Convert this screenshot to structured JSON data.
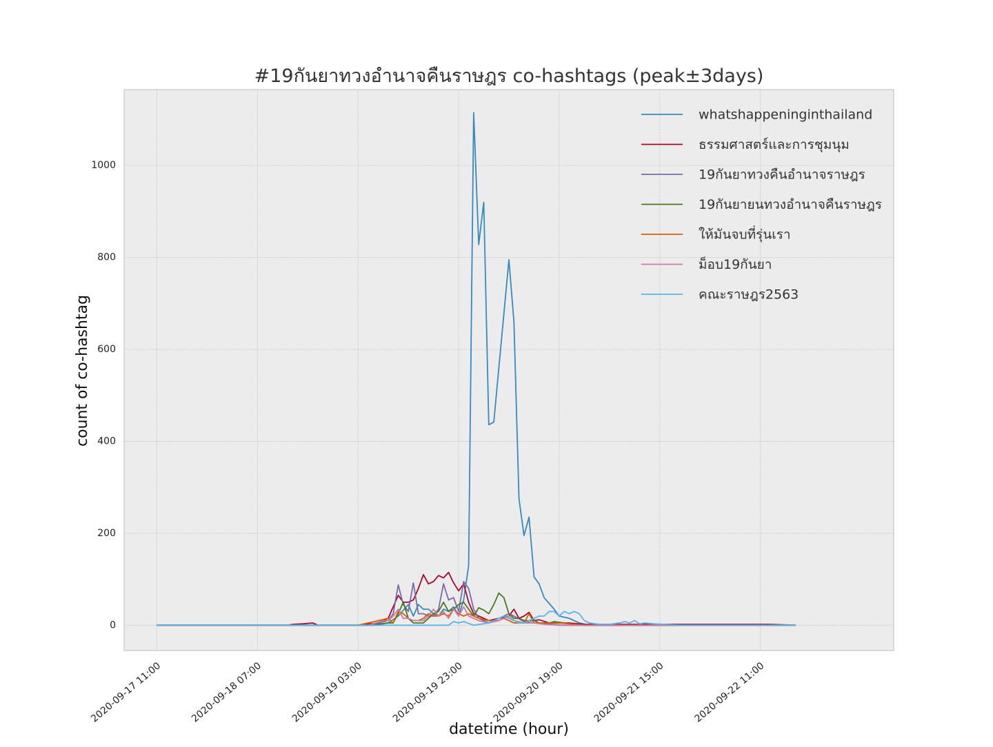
{
  "chart_data": {
    "type": "line",
    "title": "#19กันยาทวงอำนาจคืนราษฎร co-hashtags (peak±3days)",
    "xlabel": "datetime (hour)",
    "ylabel": "count of co-hashtag",
    "xlim": [
      "2020-09-17 04:30",
      "2020-09-23 13:30"
    ],
    "ylim": [
      -55,
      1165
    ],
    "xticks": [
      "2020-09-17 11:00",
      "2020-09-18 07:00",
      "2020-09-19 03:00",
      "2020-09-19 23:00",
      "2020-09-20 19:00",
      "2020-09-21 15:00",
      "2020-09-22 11:00"
    ],
    "yticks": [
      0,
      200,
      400,
      600,
      800,
      1000
    ],
    "grid": true,
    "legend_position": "upper right",
    "series": [
      {
        "name": "whatshappeninginthailand",
        "color": "#348abd",
        "points": [
          [
            "2020-09-17 11:00",
            0
          ],
          [
            "2020-09-19 06:00",
            0
          ],
          [
            "2020-09-19 09:00",
            5
          ],
          [
            "2020-09-19 11:00",
            20
          ],
          [
            "2020-09-19 13:00",
            45
          ],
          [
            "2020-09-19 14:00",
            20
          ],
          [
            "2020-09-19 15:00",
            45
          ],
          [
            "2020-09-19 16:00",
            35
          ],
          [
            "2020-09-19 17:00",
            35
          ],
          [
            "2020-09-19 18:00",
            25
          ],
          [
            "2020-09-19 19:00",
            20
          ],
          [
            "2020-09-19 20:00",
            35
          ],
          [
            "2020-09-19 21:00",
            30
          ],
          [
            "2020-09-19 22:00",
            40
          ],
          [
            "2020-09-19 23:00",
            20
          ],
          [
            "2020-09-20 00:00",
            55
          ],
          [
            "2020-09-20 01:00",
            130
          ],
          [
            "2020-09-20 02:00",
            1115
          ],
          [
            "2020-09-20 03:00",
            828
          ],
          [
            "2020-09-20 04:00",
            920
          ],
          [
            "2020-09-20 05:00",
            436
          ],
          [
            "2020-09-20 06:00",
            442
          ],
          [
            "2020-09-20 09:00",
            795
          ],
          [
            "2020-09-20 10:00",
            660
          ],
          [
            "2020-09-20 11:00",
            275
          ],
          [
            "2020-09-20 12:00",
            195
          ],
          [
            "2020-09-20 13:00",
            235
          ],
          [
            "2020-09-20 14:00",
            105
          ],
          [
            "2020-09-20 15:00",
            90
          ],
          [
            "2020-09-20 16:00",
            60
          ],
          [
            "2020-09-20 18:00",
            35
          ],
          [
            "2020-09-20 19:00",
            20
          ],
          [
            "2020-09-20 21:00",
            15
          ],
          [
            "2020-09-20 23:00",
            5
          ],
          [
            "2020-09-21 01:00",
            0
          ],
          [
            "2020-09-21 15:00",
            2
          ],
          [
            "2020-09-22 05:00",
            0
          ],
          [
            "2020-09-22 18:00",
            0
          ]
        ]
      },
      {
        "name": "ธรรมศาสตร์และการชุมนุม",
        "color": "#a60628",
        "points": [
          [
            "2020-09-17 11:00",
            0
          ],
          [
            "2020-09-18 13:00",
            0
          ],
          [
            "2020-09-18 14:00",
            2
          ],
          [
            "2020-09-18 16:00",
            3
          ],
          [
            "2020-09-18 18:00",
            5
          ],
          [
            "2020-09-18 19:00",
            0
          ],
          [
            "2020-09-19 03:00",
            0
          ],
          [
            "2020-09-19 07:00",
            5
          ],
          [
            "2020-09-19 09:00",
            15
          ],
          [
            "2020-09-19 10:00",
            40
          ],
          [
            "2020-09-19 11:00",
            65
          ],
          [
            "2020-09-19 12:00",
            50
          ],
          [
            "2020-09-19 13:00",
            50
          ],
          [
            "2020-09-19 14:00",
            55
          ],
          [
            "2020-09-19 15:00",
            80
          ],
          [
            "2020-09-19 16:00",
            110
          ],
          [
            "2020-09-19 17:00",
            90
          ],
          [
            "2020-09-19 18:00",
            95
          ],
          [
            "2020-09-19 19:00",
            108
          ],
          [
            "2020-09-19 20:00",
            103
          ],
          [
            "2020-09-19 21:00",
            115
          ],
          [
            "2020-09-19 22:00",
            92
          ],
          [
            "2020-09-19 23:00",
            75
          ],
          [
            "2020-09-20 00:00",
            90
          ],
          [
            "2020-09-20 01:00",
            50
          ],
          [
            "2020-09-20 02:00",
            25
          ],
          [
            "2020-09-20 03:00",
            20
          ],
          [
            "2020-09-20 05:00",
            10
          ],
          [
            "2020-09-20 07:00",
            15
          ],
          [
            "2020-09-20 09:00",
            20
          ],
          [
            "2020-09-20 10:00",
            35
          ],
          [
            "2020-09-20 11:00",
            15
          ],
          [
            "2020-09-20 12:00",
            20
          ],
          [
            "2020-09-20 13:00",
            28
          ],
          [
            "2020-09-20 14:00",
            10
          ],
          [
            "2020-09-20 15:00",
            12
          ],
          [
            "2020-09-20 17:00",
            5
          ],
          [
            "2020-09-20 21:00",
            5
          ],
          [
            "2020-09-21 00:00",
            2
          ],
          [
            "2020-09-21 10:00",
            2
          ],
          [
            "2020-09-22 13:00",
            2
          ],
          [
            "2020-09-22 18:00",
            0
          ]
        ]
      },
      {
        "name": "19กันยาทวงคืนอำนาจราษฎร",
        "color": "#7a68a6",
        "points": [
          [
            "2020-09-17 11:00",
            0
          ],
          [
            "2020-09-19 05:00",
            0
          ],
          [
            "2020-09-19 09:00",
            10
          ],
          [
            "2020-09-19 10:00",
            25
          ],
          [
            "2020-09-19 11:00",
            88
          ],
          [
            "2020-09-19 12:00",
            45
          ],
          [
            "2020-09-19 13:00",
            30
          ],
          [
            "2020-09-19 14:00",
            92
          ],
          [
            "2020-09-19 15:00",
            25
          ],
          [
            "2020-09-19 16:00",
            25
          ],
          [
            "2020-09-19 17:00",
            20
          ],
          [
            "2020-09-19 18:00",
            20
          ],
          [
            "2020-09-19 19:00",
            35
          ],
          [
            "2020-09-19 20:00",
            90
          ],
          [
            "2020-09-19 21:00",
            55
          ],
          [
            "2020-09-19 22:00",
            60
          ],
          [
            "2020-09-19 23:00",
            30
          ],
          [
            "2020-09-20 00:00",
            95
          ],
          [
            "2020-09-20 01:00",
            80
          ],
          [
            "2020-09-20 02:00",
            35
          ],
          [
            "2020-09-20 03:00",
            15
          ],
          [
            "2020-09-20 05:00",
            5
          ],
          [
            "2020-09-20 07:00",
            15
          ],
          [
            "2020-09-20 09:00",
            25
          ],
          [
            "2020-09-20 10:00",
            20
          ],
          [
            "2020-09-20 12:00",
            8
          ],
          [
            "2020-09-20 14:00",
            5
          ],
          [
            "2020-09-20 16:00",
            3
          ],
          [
            "2020-09-20 20:00",
            0
          ],
          [
            "2020-09-22 18:00",
            0
          ]
        ]
      },
      {
        "name": "19กันยายนทวงอำนาจคืนราษฎร",
        "color": "#467821",
        "points": [
          [
            "2020-09-17 11:00",
            0
          ],
          [
            "2020-09-19 05:00",
            0
          ],
          [
            "2020-09-19 09:00",
            5
          ],
          [
            "2020-09-19 10:00",
            5
          ],
          [
            "2020-09-19 11:00",
            25
          ],
          [
            "2020-09-19 12:00",
            50
          ],
          [
            "2020-09-19 13:00",
            15
          ],
          [
            "2020-09-19 14:00",
            5
          ],
          [
            "2020-09-19 15:00",
            5
          ],
          [
            "2020-09-19 16:00",
            5
          ],
          [
            "2020-09-19 17:00",
            15
          ],
          [
            "2020-09-19 18:00",
            25
          ],
          [
            "2020-09-19 19:00",
            30
          ],
          [
            "2020-09-19 20:00",
            50
          ],
          [
            "2020-09-19 21:00",
            30
          ],
          [
            "2020-09-19 22:00",
            35
          ],
          [
            "2020-09-19 23:00",
            45
          ],
          [
            "2020-09-20 00:00",
            50
          ],
          [
            "2020-09-20 01:00",
            35
          ],
          [
            "2020-09-20 02:00",
            20
          ],
          [
            "2020-09-20 03:00",
            38
          ],
          [
            "2020-09-20 04:00",
            33
          ],
          [
            "2020-09-20 05:00",
            25
          ],
          [
            "2020-09-20 06:00",
            45
          ],
          [
            "2020-09-20 07:00",
            70
          ],
          [
            "2020-09-20 08:00",
            60
          ],
          [
            "2020-09-20 09:00",
            25
          ],
          [
            "2020-09-20 10:00",
            15
          ],
          [
            "2020-09-20 11:00",
            15
          ],
          [
            "2020-09-20 12:00",
            10
          ],
          [
            "2020-09-20 14:00",
            10
          ],
          [
            "2020-09-20 15:00",
            5
          ],
          [
            "2020-09-20 17:00",
            5
          ],
          [
            "2020-09-20 18:00",
            8
          ],
          [
            "2020-09-20 20:00",
            5
          ],
          [
            "2020-09-20 22:00",
            2
          ],
          [
            "2020-09-21 00:00",
            0
          ],
          [
            "2020-09-22 18:00",
            0
          ]
        ]
      },
      {
        "name": "ให้มันจบที่รุ่นเรา",
        "color": "#d55e00",
        "points": [
          [
            "2020-09-17 11:00",
            0
          ],
          [
            "2020-09-19 03:00",
            0
          ],
          [
            "2020-09-19 05:00",
            5
          ],
          [
            "2020-09-19 07:00",
            10
          ],
          [
            "2020-09-19 09:00",
            15
          ],
          [
            "2020-09-19 10:00",
            5
          ],
          [
            "2020-09-19 11:00",
            30
          ],
          [
            "2020-09-19 12:00",
            25
          ],
          [
            "2020-09-19 13:00",
            15
          ],
          [
            "2020-09-19 14:00",
            10
          ],
          [
            "2020-09-19 15:00",
            10
          ],
          [
            "2020-09-19 16:00",
            15
          ],
          [
            "2020-09-19 17:00",
            25
          ],
          [
            "2020-09-19 18:00",
            20
          ],
          [
            "2020-09-19 19:00",
            20
          ],
          [
            "2020-09-19 20:00",
            25
          ],
          [
            "2020-09-19 21:00",
            20
          ],
          [
            "2020-09-19 22:00",
            35
          ],
          [
            "2020-09-19 23:00",
            25
          ],
          [
            "2020-09-20 00:00",
            20
          ],
          [
            "2020-09-20 01:00",
            25
          ],
          [
            "2020-09-20 02:00",
            20
          ],
          [
            "2020-09-20 03:00",
            15
          ],
          [
            "2020-09-20 05:00",
            10
          ],
          [
            "2020-09-20 07:00",
            10
          ],
          [
            "2020-09-20 08:00",
            15
          ],
          [
            "2020-09-20 09:00",
            10
          ],
          [
            "2020-09-20 10:00",
            5
          ],
          [
            "2020-09-20 12:00",
            5
          ],
          [
            "2020-09-20 13:00",
            25
          ],
          [
            "2020-09-20 14:00",
            5
          ],
          [
            "2020-09-20 16:00",
            5
          ],
          [
            "2020-09-20 19:00",
            5
          ],
          [
            "2020-09-20 22:00",
            2
          ],
          [
            "2020-09-21 00:00",
            0
          ],
          [
            "2020-09-22 18:00",
            0
          ]
        ]
      },
      {
        "name": "ม็อบ19กันยา",
        "color": "#cc79a7",
        "points": [
          [
            "2020-09-17 11:00",
            0
          ],
          [
            "2020-09-19 05:00",
            0
          ],
          [
            "2020-09-19 08:00",
            10
          ],
          [
            "2020-09-19 09:00",
            10
          ],
          [
            "2020-09-19 10:00",
            20
          ],
          [
            "2020-09-19 11:00",
            35
          ],
          [
            "2020-09-19 12:00",
            15
          ],
          [
            "2020-09-19 13:00",
            15
          ],
          [
            "2020-09-19 14:00",
            10
          ],
          [
            "2020-09-19 15:00",
            10
          ],
          [
            "2020-09-19 16:00",
            10
          ],
          [
            "2020-09-19 17:00",
            20
          ],
          [
            "2020-09-19 18:00",
            35
          ],
          [
            "2020-09-19 19:00",
            20
          ],
          [
            "2020-09-19 20:00",
            30
          ],
          [
            "2020-09-19 21:00",
            15
          ],
          [
            "2020-09-19 22:00",
            35
          ],
          [
            "2020-09-19 23:00",
            20
          ],
          [
            "2020-09-20 00:00",
            40
          ],
          [
            "2020-09-20 01:00",
            20
          ],
          [
            "2020-09-20 02:00",
            15
          ],
          [
            "2020-09-20 03:00",
            10
          ],
          [
            "2020-09-20 05:00",
            5
          ],
          [
            "2020-09-20 07:00",
            10
          ],
          [
            "2020-09-20 09:00",
            20
          ],
          [
            "2020-09-20 10:00",
            10
          ],
          [
            "2020-09-20 12:00",
            5
          ],
          [
            "2020-09-20 14:00",
            5
          ],
          [
            "2020-09-20 16:00",
            2
          ],
          [
            "2020-09-20 19:00",
            0
          ],
          [
            "2020-09-22 18:00",
            0
          ]
        ]
      },
      {
        "name": "คณะราษฎร2563",
        "color": "#56b4e9",
        "points": [
          [
            "2020-09-17 11:00",
            0
          ],
          [
            "2020-09-19 21:00",
            0
          ],
          [
            "2020-09-19 22:00",
            8
          ],
          [
            "2020-09-19 23:00",
            5
          ],
          [
            "2020-09-20 00:00",
            8
          ],
          [
            "2020-09-20 02:00",
            0
          ],
          [
            "2020-09-20 05:00",
            5
          ],
          [
            "2020-09-20 07:00",
            15
          ],
          [
            "2020-09-20 08:00",
            20
          ],
          [
            "2020-09-20 09:00",
            15
          ],
          [
            "2020-09-20 10:00",
            10
          ],
          [
            "2020-09-20 11:00",
            5
          ],
          [
            "2020-09-20 12:00",
            5
          ],
          [
            "2020-09-20 13:00",
            10
          ],
          [
            "2020-09-20 14:00",
            15
          ],
          [
            "2020-09-20 15:00",
            20
          ],
          [
            "2020-09-20 16:00",
            20
          ],
          [
            "2020-09-20 17:00",
            30
          ],
          [
            "2020-09-20 18:00",
            30
          ],
          [
            "2020-09-20 19:00",
            20
          ],
          [
            "2020-09-20 20:00",
            30
          ],
          [
            "2020-09-20 21:00",
            25
          ],
          [
            "2020-09-20 22:00",
            30
          ],
          [
            "2020-09-20 23:00",
            25
          ],
          [
            "2020-09-21 00:00",
            10
          ],
          [
            "2020-09-21 01:00",
            5
          ],
          [
            "2020-09-21 03:00",
            2
          ],
          [
            "2020-09-21 05:00",
            2
          ],
          [
            "2020-09-21 07:00",
            5
          ],
          [
            "2020-09-21 08:00",
            8
          ],
          [
            "2020-09-21 09:00",
            5
          ],
          [
            "2020-09-21 10:00",
            10
          ],
          [
            "2020-09-21 11:00",
            3
          ],
          [
            "2020-09-21 12:00",
            5
          ],
          [
            "2020-09-21 14:00",
            3
          ],
          [
            "2020-09-21 16:00",
            2
          ],
          [
            "2020-09-21 19:00",
            0
          ],
          [
            "2020-09-22 18:00",
            0
          ]
        ]
      }
    ]
  }
}
